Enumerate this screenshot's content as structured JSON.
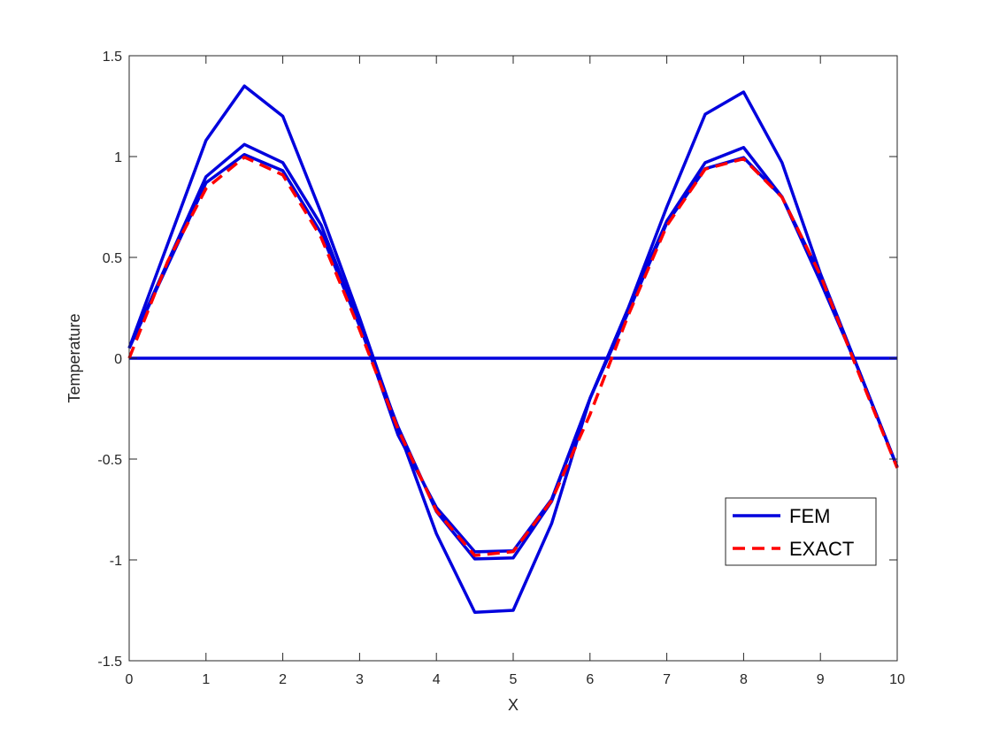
{
  "chart_data": {
    "type": "line",
    "title": "",
    "xlabel": "X",
    "ylabel": "Temperature",
    "xlim": [
      0,
      10
    ],
    "ylim": [
      -1.5,
      1.5
    ],
    "xticks": [
      0,
      1,
      2,
      3,
      4,
      5,
      6,
      7,
      8,
      9,
      10
    ],
    "yticks": [
      -1.5,
      -1,
      -0.5,
      0,
      0.5,
      1,
      1.5
    ],
    "ytick_labels": [
      "-1.5",
      "-1",
      "-0.5",
      "0",
      "0.5",
      "1",
      "1.5"
    ],
    "xtick_labels": [
      "0",
      "1",
      "2",
      "3",
      "4",
      "5",
      "6",
      "7",
      "8",
      "9",
      "10"
    ],
    "grid": false,
    "legend_position": "lower-right",
    "legend": [
      {
        "label": "FEM",
        "color": "#0000dd",
        "style": "solid"
      },
      {
        "label": "EXACT",
        "color": "#ff0000",
        "style": "dashed"
      }
    ],
    "series": [
      {
        "legend": "FEM",
        "color": "#0000dd",
        "style": "solid",
        "x": [
          0,
          1,
          1.5,
          2,
          2.5,
          3,
          3.5,
          4,
          4.5,
          5,
          5.5,
          6,
          6.5,
          7,
          7.5,
          8,
          8.5,
          9,
          9.5,
          10
        ],
        "y": [
          0.05,
          1.08,
          1.35,
          1.2,
          0.72,
          0.2,
          -0.35,
          -0.87,
          -1.26,
          -1.25,
          -0.82,
          -0.2,
          0.25,
          0.75,
          1.21,
          1.32,
          0.97,
          0.42,
          -0.06,
          -0.54
        ]
      },
      {
        "legend": "FEM",
        "color": "#0000dd",
        "style": "solid",
        "x": [
          0,
          1,
          1.5,
          2,
          2.5,
          3,
          3.5,
          4,
          4.5,
          5,
          5.5,
          6,
          6.5,
          7,
          7.5,
          8,
          8.5,
          9,
          9.5,
          10
        ],
        "y": [
          0.05,
          0.9,
          1.06,
          0.97,
          0.66,
          0.17,
          -0.38,
          -0.74,
          -0.96,
          -0.955,
          -0.7,
          -0.2,
          0.25,
          0.68,
          0.97,
          1.045,
          0.8,
          0.38,
          -0.06,
          -0.54
        ]
      },
      {
        "legend": "FEM",
        "color": "#0000dd",
        "style": "solid",
        "x": [
          0,
          1,
          1.5,
          2,
          2.5,
          3,
          3.5,
          4,
          4.5,
          5,
          5.5,
          6,
          6.5,
          7,
          7.5,
          8,
          8.5,
          9,
          9.5,
          10
        ],
        "y": [
          0.05,
          0.87,
          1.01,
          0.93,
          0.62,
          0.16,
          -0.34,
          -0.76,
          -0.995,
          -0.99,
          -0.71,
          -0.2,
          0.23,
          0.67,
          0.94,
          0.995,
          0.8,
          0.41,
          -0.06,
          -0.54
        ]
      },
      {
        "legend": "FEM",
        "color": "#0000dd",
        "style": "solid",
        "x": [
          0,
          10
        ],
        "y": [
          0,
          0
        ]
      },
      {
        "legend": "EXACT",
        "color": "#ff0000",
        "style": "dashed",
        "x": [
          0,
          0.5,
          1,
          1.5,
          2,
          2.5,
          3,
          3.5,
          4,
          4.5,
          5,
          5.5,
          6,
          6.5,
          7,
          7.5,
          8,
          8.5,
          9,
          9.5,
          10
        ],
        "y": [
          0,
          0.479,
          0.841,
          0.997,
          0.909,
          0.598,
          0.141,
          -0.351,
          -0.757,
          -0.978,
          -0.959,
          -0.706,
          -0.279,
          0.215,
          0.657,
          0.938,
          0.989,
          0.798,
          0.412,
          -0.075,
          -0.544
        ]
      }
    ]
  }
}
